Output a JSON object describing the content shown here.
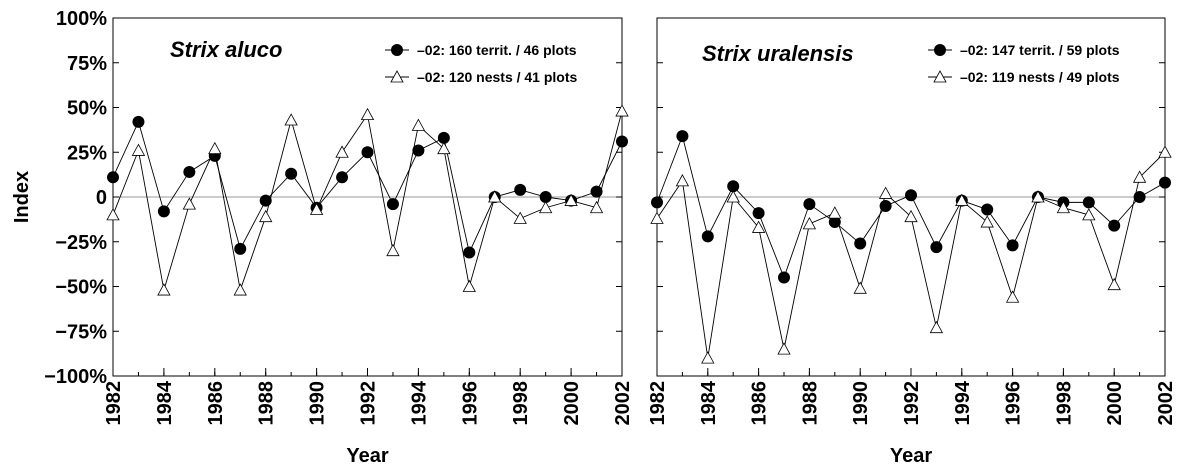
{
  "chart_data": [
    {
      "type": "line",
      "title": "Strix aluco",
      "xlabel": "Year",
      "ylabel": "Index",
      "x": [
        1982,
        1983,
        1984,
        1985,
        1986,
        1987,
        1988,
        1989,
        1990,
        1991,
        1992,
        1993,
        1994,
        1995,
        1996,
        1997,
        1998,
        1999,
        2000,
        2001,
        2002
      ],
      "xlim": [
        1982,
        2002
      ],
      "xticks": [
        1982,
        1984,
        1986,
        1988,
        1990,
        1992,
        1994,
        1996,
        1998,
        2000,
        2002
      ],
      "ylim": [
        -100,
        100
      ],
      "yticks": [
        {
          "value": -100,
          "label": "−100%"
        },
        {
          "value": -75,
          "label": "−75%"
        },
        {
          "value": -50,
          "label": "−50%"
        },
        {
          "value": -25,
          "label": "−25%"
        },
        0,
        {
          "value": 25,
          "label": "25%"
        },
        {
          "value": 50,
          "label": "50%"
        },
        {
          "value": 75,
          "label": "75%"
        },
        {
          "value": 100,
          "label": "100%"
        }
      ],
      "series": [
        {
          "name": "–02: 160 territ. / 46 plots",
          "color": "#000000",
          "marker": "circle",
          "values": [
            11,
            42,
            -8,
            14,
            23,
            -29,
            -2,
            13,
            -6,
            11,
            25,
            -4,
            26,
            33,
            -31,
            0,
            4,
            0,
            -2,
            3,
            31
          ]
        },
        {
          "name": "–02: 120 nests / 41 plots",
          "color": "#000000",
          "marker": "triangle",
          "values": [
            -10,
            26,
            -52,
            -4,
            27,
            -52,
            -11,
            43,
            -7,
            25,
            46,
            -30,
            40,
            27,
            -50,
            0,
            -12,
            -6,
            -2,
            -6,
            48
          ]
        }
      ]
    },
    {
      "type": "line",
      "title": "Strix uralensis",
      "xlabel": "Year",
      "x": [
        1982,
        1983,
        1984,
        1985,
        1986,
        1987,
        1988,
        1989,
        1990,
        1991,
        1992,
        1993,
        1994,
        1995,
        1996,
        1997,
        1998,
        1999,
        2000,
        2001,
        2002
      ],
      "xlim": [
        1982,
        2002
      ],
      "xticks": [
        1982,
        1984,
        1986,
        1988,
        1990,
        1992,
        1994,
        1996,
        1998,
        2000,
        2002
      ],
      "ylim": [
        -100,
        100
      ],
      "yticks": [
        -100,
        -75,
        -50,
        -25,
        0,
        25,
        50,
        75,
        100
      ],
      "ytick_labels": false,
      "series": [
        {
          "name": "–02: 147 territ. / 59 plots",
          "color": "#000000",
          "marker": "circle",
          "values": [
            -3,
            34,
            -22,
            6,
            -9,
            -45,
            -4,
            -14,
            -26,
            -5,
            1,
            -28,
            -2,
            -7,
            -27,
            0,
            -3,
            -3,
            -16,
            0,
            8
          ]
        },
        {
          "name": "–02: 119 nests / 49 plots",
          "color": "#000000",
          "marker": "triangle",
          "values": [
            -12,
            9,
            -90,
            0,
            -17,
            -85,
            -15,
            -9,
            -51,
            2,
            -11,
            -73,
            -2,
            -14,
            -56,
            0,
            -6,
            -10,
            -49,
            11,
            25
          ]
        }
      ]
    }
  ]
}
